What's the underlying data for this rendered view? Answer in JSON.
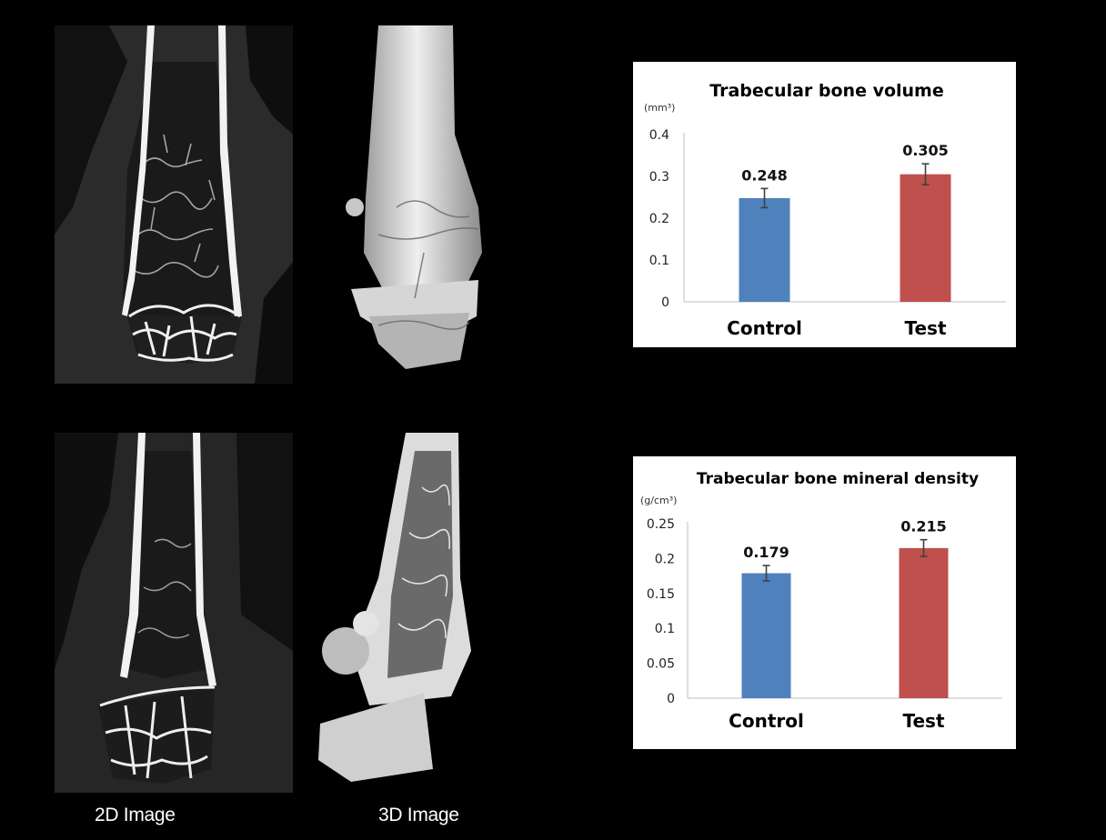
{
  "images": {
    "label_2d": "2D Image",
    "label_3d": "3D Image"
  },
  "chart_data": [
    {
      "type": "bar",
      "title": "Trabecular bone volume",
      "ylabel": "(mm³)",
      "categories": [
        "Control",
        "Test"
      ],
      "values": [
        0.248,
        0.305
      ],
      "value_labels": [
        "0.248",
        "0.305"
      ],
      "error": [
        0.023,
        0.025
      ],
      "colors": [
        "#4F81BD",
        "#C0504D"
      ],
      "ylim": [
        0,
        0.4
      ],
      "yticks": [
        0,
        0.1,
        0.2,
        0.3,
        0.4
      ],
      "ytick_labels": [
        "0",
        "0.1",
        "0.2",
        "0.3",
        "0.4"
      ]
    },
    {
      "type": "bar",
      "title": "Trabecular bone mineral density",
      "ylabel": "(g/cm³)",
      "categories": [
        "Control",
        "Test"
      ],
      "values": [
        0.179,
        0.215
      ],
      "value_labels": [
        "0.179",
        "0.215"
      ],
      "error": [
        0.011,
        0.012
      ],
      "colors": [
        "#4F81BD",
        "#C0504D"
      ],
      "ylim": [
        0,
        0.25
      ],
      "yticks": [
        0,
        0.05,
        0.1,
        0.15,
        0.2,
        0.25
      ],
      "ytick_labels": [
        "0",
        "0.05",
        "0.1",
        "0.15",
        "0.2",
        "0.25"
      ]
    }
  ]
}
